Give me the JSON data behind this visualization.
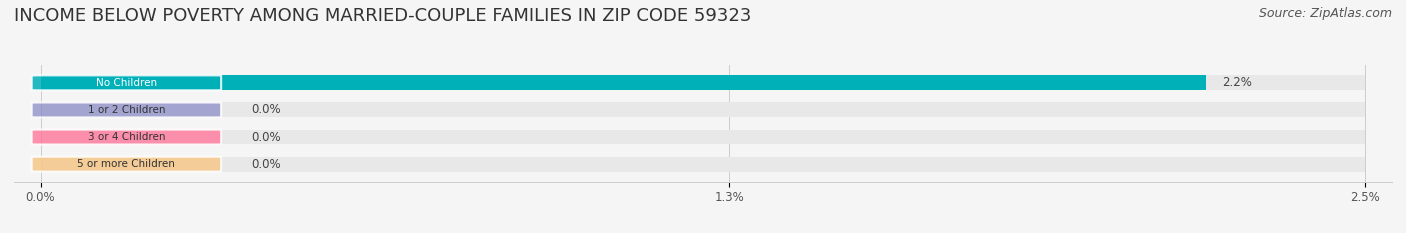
{
  "title": "INCOME BELOW POVERTY AMONG MARRIED-COUPLE FAMILIES IN ZIP CODE 59323",
  "source": "Source: ZipAtlas.com",
  "categories": [
    "No Children",
    "1 or 2 Children",
    "3 or 4 Children",
    "5 or more Children"
  ],
  "values": [
    2.2,
    0.0,
    0.0,
    0.0
  ],
  "bar_colors": [
    "#00b0b9",
    "#9999cc",
    "#ff7fa0",
    "#f5c889"
  ],
  "label_colors": [
    "#00b0b9",
    "#9999cc",
    "#ff7fa0",
    "#f5c889"
  ],
  "xlim": [
    0,
    2.5
  ],
  "xticks": [
    0.0,
    1.3,
    2.5
  ],
  "xtick_labels": [
    "0.0%",
    "1.3%",
    "2.5%"
  ],
  "background_color": "#f5f5f5",
  "bar_background_color": "#e8e8e8",
  "title_fontsize": 13,
  "source_fontsize": 9,
  "value_labels": [
    "2.2%",
    "0.0%",
    "0.0%",
    "0.0%"
  ]
}
